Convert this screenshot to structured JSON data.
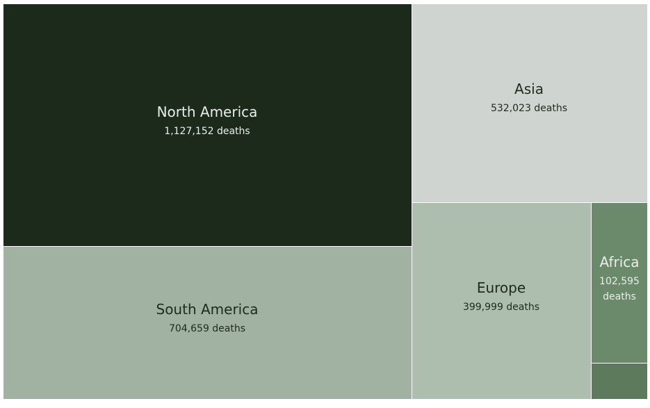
{
  "chart_data": {
    "type": "treemap",
    "value_suffix": "deaths",
    "items": [
      {
        "name": "North America",
        "value": 1127152,
        "value_label": "1,127,152 deaths",
        "color": "#1c2a1c",
        "text_color": "#e9eee9"
      },
      {
        "name": "South America",
        "value": 704659,
        "value_label": "704,659 deaths",
        "color": "#a1b1a2",
        "text_color": "#1e2a1e"
      },
      {
        "name": "Asia",
        "value": 532023,
        "value_label": "532,023 deaths",
        "color": "#cfd4d0",
        "text_color": "#1e2a1e"
      },
      {
        "name": "Europe",
        "value": 399999,
        "value_label": "399,999 deaths",
        "color": "#adbdae",
        "text_color": "#1e2a1e"
      },
      {
        "name": "Africa",
        "value": 102595,
        "value_label_lines": [
          "102,595",
          "deaths"
        ],
        "color": "#6b8a6b",
        "text_color": "#e9eee9"
      },
      {
        "name": "",
        "value": 0,
        "color": "#5d7a5d",
        "text_color": "#e9eee9"
      }
    ]
  }
}
